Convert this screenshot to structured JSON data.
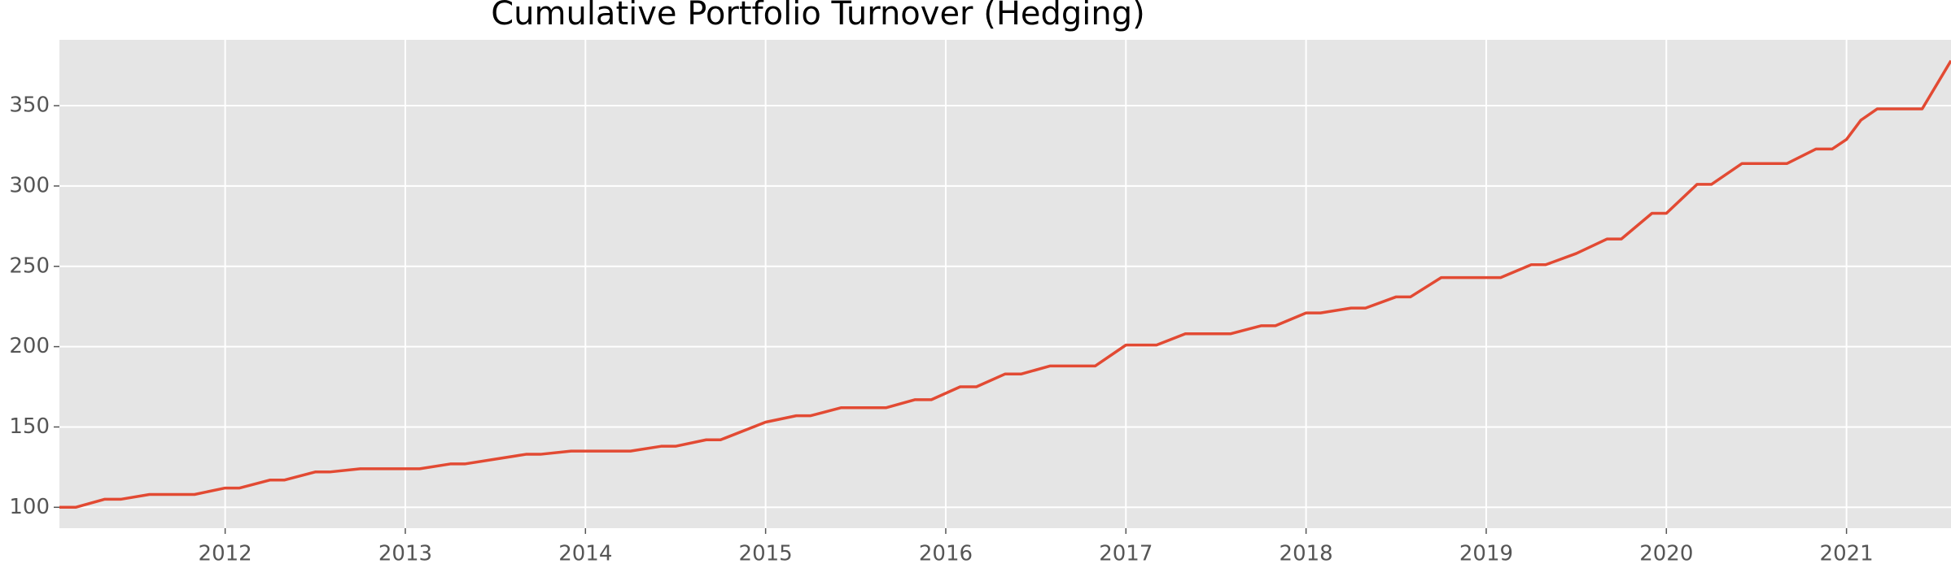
{
  "chart_data": {
    "type": "line",
    "title": "Cumulative Portfolio Turnover (Hedging)",
    "x": [
      2011.08,
      2011.17,
      2011.33,
      2011.42,
      2011.58,
      2011.83,
      2012.0,
      2012.08,
      2012.25,
      2012.33,
      2012.5,
      2012.58,
      2012.75,
      2013.08,
      2013.25,
      2013.33,
      2013.5,
      2013.67,
      2013.75,
      2013.92,
      2014.25,
      2014.42,
      2014.5,
      2014.67,
      2014.75,
      2015.0,
      2015.17,
      2015.25,
      2015.42,
      2015.67,
      2015.83,
      2015.92,
      2016.08,
      2016.17,
      2016.33,
      2016.42,
      2016.58,
      2016.83,
      2017.0,
      2017.17,
      2017.33,
      2017.58,
      2017.75,
      2017.83,
      2018.0,
      2018.08,
      2018.25,
      2018.33,
      2018.5,
      2018.58,
      2018.75,
      2019.08,
      2019.25,
      2019.33,
      2019.5,
      2019.67,
      2019.75,
      2019.92,
      2020.0,
      2020.17,
      2020.25,
      2020.42,
      2020.67,
      2020.83,
      2020.92,
      2021.0,
      2021.08,
      2021.17,
      2021.42,
      2021.58
    ],
    "series": [
      {
        "color": "#e24a33",
        "values": [
          100,
          100,
          105,
          105,
          108,
          108,
          112,
          112,
          117,
          117,
          122,
          122,
          124,
          124,
          127,
          127,
          130,
          133,
          133,
          135,
          135,
          138,
          138,
          142,
          142,
          153,
          157,
          157,
          162,
          162,
          167,
          167,
          175,
          175,
          183,
          183,
          188,
          188,
          201,
          201,
          208,
          208,
          213,
          213,
          221,
          221,
          224,
          224,
          231,
          231,
          243,
          243,
          251,
          251,
          258,
          267,
          267,
          283,
          283,
          301,
          301,
          314,
          314,
          323,
          323,
          329,
          341,
          348,
          348,
          378
        ]
      }
    ],
    "xlim": [
      2011.08,
      2021.58
    ],
    "xticks": [
      2012,
      2013,
      2014,
      2015,
      2016,
      2017,
      2018,
      2019,
      2020,
      2021
    ],
    "ylim": [
      87,
      391
    ],
    "yticks": [
      100,
      150,
      200,
      250,
      300,
      350
    ],
    "grid": true
  }
}
